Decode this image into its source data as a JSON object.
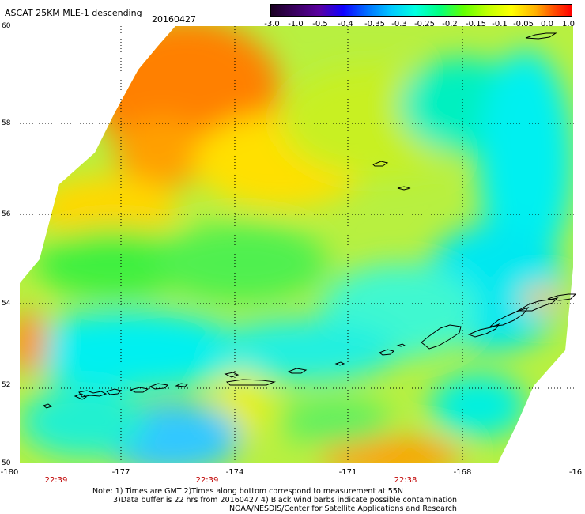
{
  "title": "ASCAT 25KM MLE-1 descending",
  "date": "20160427",
  "colorbar": {
    "ticks": [
      "-3.0",
      "-1.0",
      "-0.5",
      "-0.4",
      "-0.35",
      "-0.3",
      "-0.25",
      "-0.2",
      "-0.15",
      "-0.1",
      "-0.05",
      "0.0",
      "1.0"
    ],
    "colors": [
      "#1a0022",
      "#5a00a0",
      "#0070ff",
      "#00ffe0",
      "#60ff00",
      "#ffff00",
      "#ff0000"
    ]
  },
  "map": {
    "latitude_labels": [
      "60",
      "58",
      "56",
      "54",
      "52",
      "50"
    ],
    "longitude_labels": [
      "-180",
      "-177",
      "-174",
      "-171",
      "-168",
      "-16"
    ],
    "pass_times": [
      "22:39",
      "22:39",
      "22:38"
    ],
    "colors": {
      "land_outline": "#000000",
      "grid": "#000000",
      "orange": "#ff8000",
      "yellow": "#e8f000",
      "green": "#40f040",
      "cyan": "#00f0e0",
      "blue": "#30c8ff"
    }
  },
  "notes": [
    "Note: 1) Times are GMT 2)Times along bottom correspond to measurement at 55N",
    "3)Data buffer is 22 hrs from 20160427 4) Black wind barbs indicate possible contamination",
    "NOAA/NESDIS/Center for Satellite Applications and Research"
  ]
}
